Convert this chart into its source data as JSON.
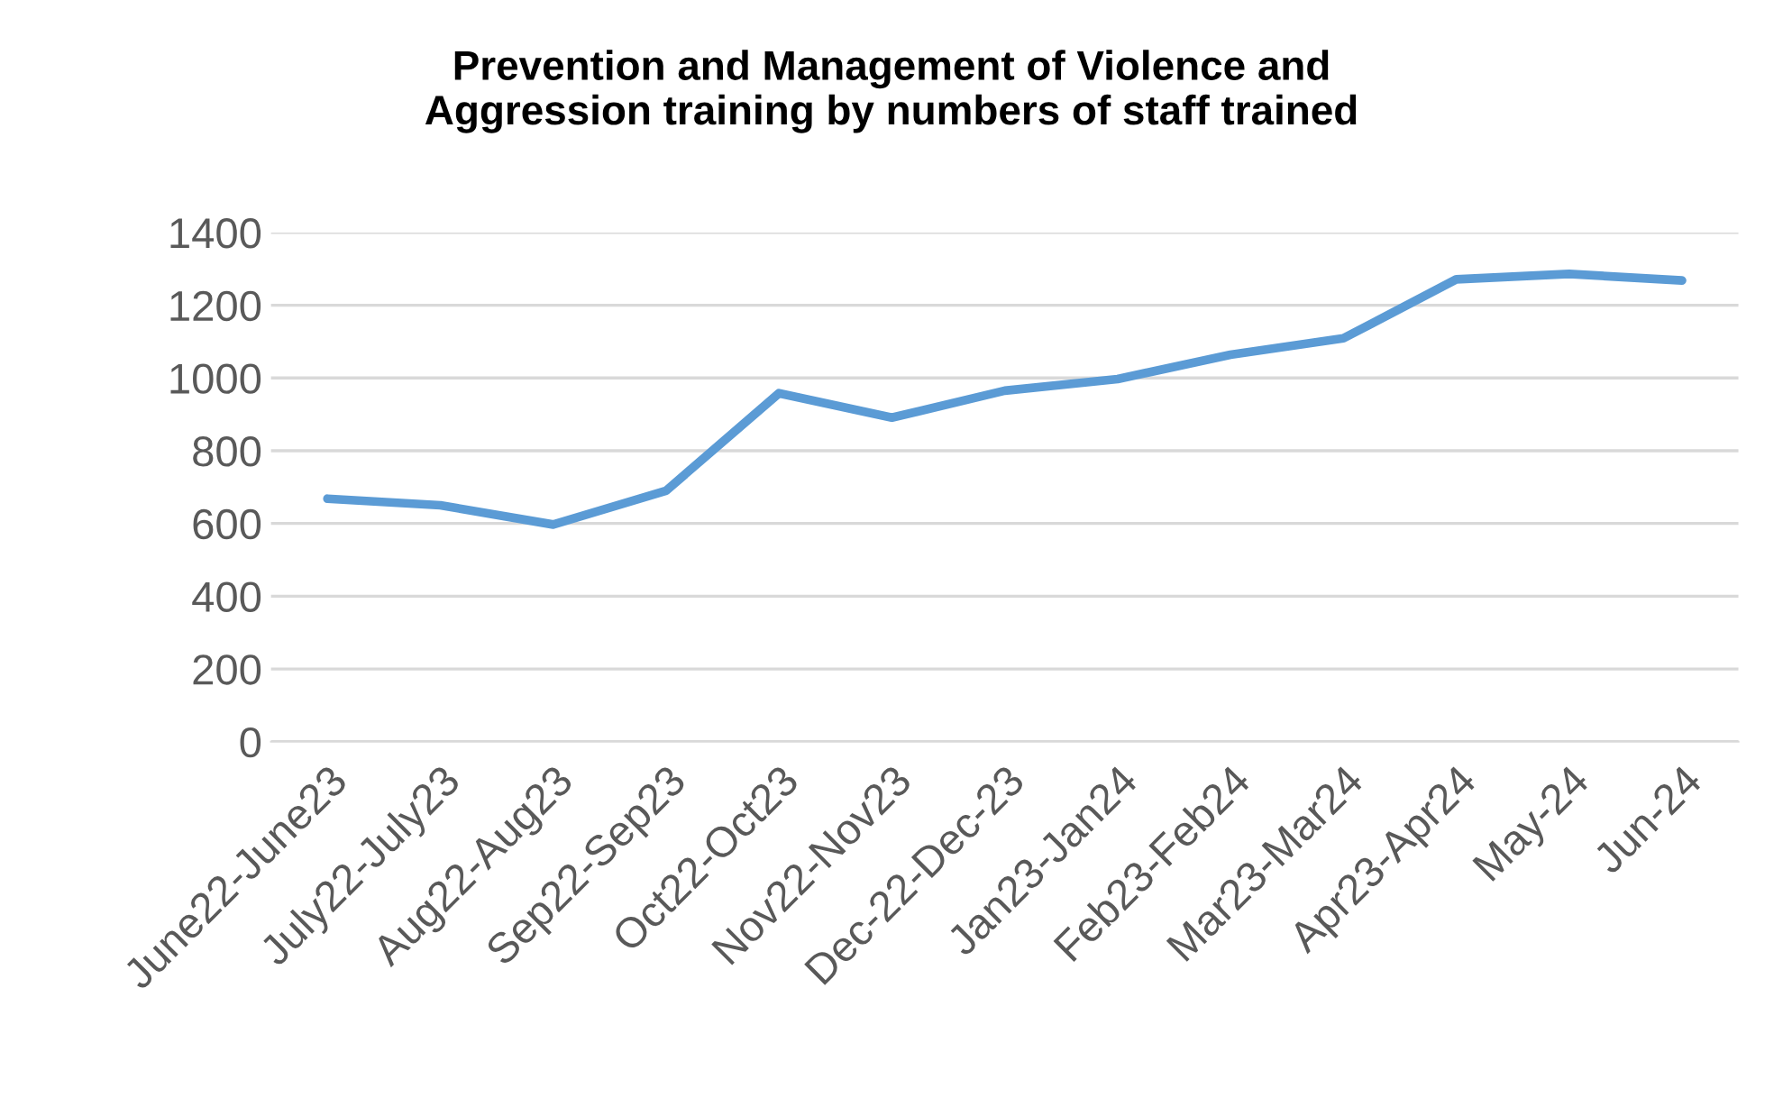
{
  "chart_data": {
    "type": "line",
    "title": "Prevention and Management of Violence and\nAggression training by numbers of staff trained",
    "categories": [
      "June22-June23",
      "July22-July23",
      "Aug22-Aug23",
      "Sep22-Sep23",
      "Oct22-Oct23",
      "Nov22-Nov23",
      "Dec-22-Dec-23",
      "Jan23-Jan24",
      "Feb23-Feb24",
      "Mar23-Mar24",
      "Apr23-Apr24",
      "May-24",
      "Jun-24"
    ],
    "series": [
      {
        "color": "#5b9bd5",
        "values": [
          668,
          650,
          597,
          690,
          958,
          891,
          965,
          997,
          1064,
          1109,
          1271,
          1286,
          1268
        ]
      }
    ],
    "ylim": [
      0,
      1400
    ],
    "yticks": [
      0,
      200,
      400,
      600,
      800,
      1000,
      1200,
      1400
    ],
    "grid": "y",
    "legend": false,
    "marker": "none",
    "line_style": "solid"
  }
}
